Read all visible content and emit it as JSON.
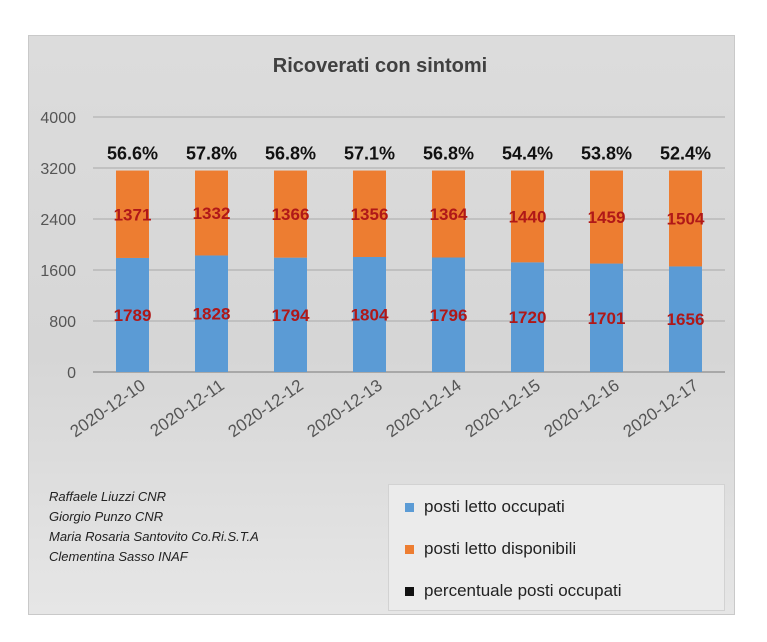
{
  "chart_data": {
    "type": "bar",
    "stacked": true,
    "title": "Ricoverati con sintomi",
    "categories": [
      "2020-12-10",
      "2020-12-11",
      "2020-12-12",
      "2020-12-13",
      "2020-12-14",
      "2020-12-15",
      "2020-12-16",
      "2020-12-17"
    ],
    "series": [
      {
        "name": "posti letto occupati",
        "color": "#5b9bd5",
        "values": [
          1789,
          1828,
          1794,
          1804,
          1796,
          1720,
          1701,
          1656
        ]
      },
      {
        "name": "posti letto disponibili",
        "color": "#ed7d31",
        "values": [
          1371,
          1332,
          1366,
          1356,
          1364,
          1440,
          1459,
          1504
        ]
      },
      {
        "name": "percentuale posti occupati",
        "color": "#111111",
        "labels": [
          "56.6%",
          "57.8%",
          "56.8%",
          "57.1%",
          "56.8%",
          "54.4%",
          "53.8%",
          "52.4%"
        ]
      }
    ],
    "ylim": [
      0,
      4000
    ],
    "yticks": [
      0,
      800,
      1600,
      2400,
      3200,
      4000
    ],
    "grid": true,
    "legend": "bottom-right",
    "label_color": "#b01818"
  },
  "credits": [
    "Raffaele Liuzzi CNR",
    "Giorgio Punzo CNR",
    "Maria Rosaria Santovito Co.Ri.S.T.A",
    "Clementina Sasso INAF"
  ]
}
